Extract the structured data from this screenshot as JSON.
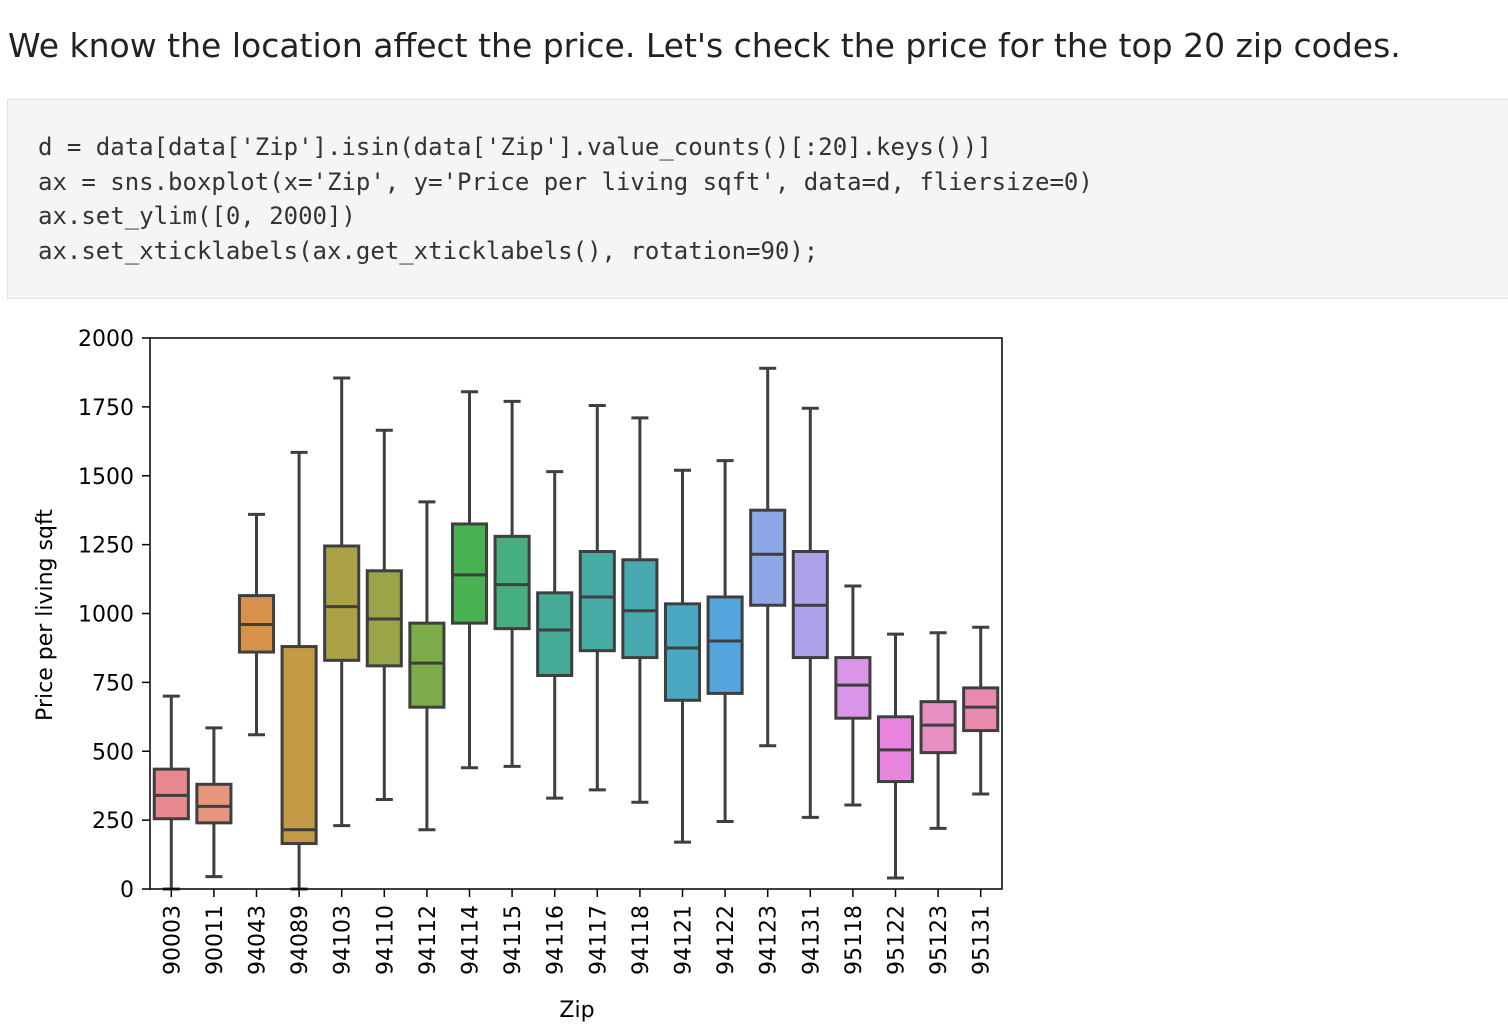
{
  "intro_text": "We know the location affect the price. Let's check the price for the top 20 zip codes.",
  "code": {
    "line1": {
      "a": "d = data[data['Zip'].isin(data['Zip'].value_counts()[:20].keys())]"
    },
    "line2": "ax = sns.boxplot(x='Zip', y='Price per living sqft', data=d, fliersize=0)",
    "line3": "ax.set_ylim([0, 2000])",
    "line4": "ax.set_xticklabels(ax.get_xticklabels(), rotation=90);"
  },
  "chart_data": {
    "type": "box",
    "title": "",
    "xlabel": "Zip",
    "ylabel": "Price per living sqft",
    "ylim": [
      0,
      2000
    ],
    "yticks": [
      0,
      250,
      500,
      750,
      1000,
      1250,
      1500,
      1750,
      2000
    ],
    "categories": [
      "90003",
      "90011",
      "94043",
      "94089",
      "94103",
      "94110",
      "94112",
      "94114",
      "94115",
      "94116",
      "94117",
      "94118",
      "94121",
      "94122",
      "94123",
      "94131",
      "95118",
      "95122",
      "95123",
      "95131"
    ],
    "boxes": [
      {
        "zip": "90003",
        "whislo": 0,
        "q1": 255,
        "med": 340,
        "q3": 435,
        "whishi": 700,
        "color": "#e8888f"
      },
      {
        "zip": "90011",
        "whislo": 45,
        "q1": 240,
        "med": 300,
        "q3": 380,
        "whishi": 585,
        "color": "#e8957d"
      },
      {
        "zip": "94043",
        "whislo": 560,
        "q1": 860,
        "med": 960,
        "q3": 1065,
        "whishi": 1360,
        "color": "#d8914a"
      },
      {
        "zip": "94089",
        "whislo": 0,
        "q1": 165,
        "med": 215,
        "q3": 880,
        "whishi": 1585,
        "color": "#c39a45"
      },
      {
        "zip": "94103",
        "whislo": 230,
        "q1": 830,
        "med": 1025,
        "q3": 1245,
        "whishi": 1855,
        "color": "#aba248"
      },
      {
        "zip": "94110",
        "whislo": 325,
        "q1": 810,
        "med": 980,
        "q3": 1155,
        "whishi": 1665,
        "color": "#9aa448"
      },
      {
        "zip": "94112",
        "whislo": 215,
        "q1": 660,
        "med": 820,
        "q3": 965,
        "whishi": 1405,
        "color": "#7cac4a"
      },
      {
        "zip": "94114",
        "whislo": 440,
        "q1": 965,
        "med": 1140,
        "q3": 1325,
        "whishi": 1805,
        "color": "#48b150"
      },
      {
        "zip": "94115",
        "whislo": 445,
        "q1": 945,
        "med": 1105,
        "q3": 1280,
        "whishi": 1770,
        "color": "#47ae81"
      },
      {
        "zip": "94116",
        "whislo": 330,
        "q1": 775,
        "med": 940,
        "q3": 1075,
        "whishi": 1515,
        "color": "#45ab96"
      },
      {
        "zip": "94117",
        "whislo": 360,
        "q1": 865,
        "med": 1060,
        "q3": 1225,
        "whishi": 1755,
        "color": "#47aba5"
      },
      {
        "zip": "94118",
        "whislo": 315,
        "q1": 840,
        "med": 1010,
        "q3": 1195,
        "whishi": 1710,
        "color": "#48a9b1"
      },
      {
        "zip": "94121",
        "whislo": 170,
        "q1": 685,
        "med": 875,
        "q3": 1035,
        "whishi": 1520,
        "color": "#4aa8c2"
      },
      {
        "zip": "94122",
        "whislo": 245,
        "q1": 710,
        "med": 900,
        "q3": 1060,
        "whishi": 1555,
        "color": "#52a6dd"
      },
      {
        "zip": "94123",
        "whislo": 520,
        "q1": 1030,
        "med": 1215,
        "q3": 1375,
        "whishi": 1890,
        "color": "#8ea8e7"
      },
      {
        "zip": "94131",
        "whislo": 260,
        "q1": 840,
        "med": 1030,
        "q3": 1225,
        "whishi": 1745,
        "color": "#b0a2ea"
      },
      {
        "zip": "95118",
        "whislo": 305,
        "q1": 620,
        "med": 740,
        "q3": 840,
        "whishi": 1100,
        "color": "#d995e8"
      },
      {
        "zip": "95122",
        "whislo": 40,
        "q1": 390,
        "med": 505,
        "q3": 625,
        "whishi": 925,
        "color": "#e883de"
      },
      {
        "zip": "95123",
        "whislo": 220,
        "q1": 495,
        "med": 595,
        "q3": 680,
        "whishi": 930,
        "color": "#e88ec2"
      },
      {
        "zip": "95131",
        "whislo": 345,
        "q1": 575,
        "med": 660,
        "q3": 730,
        "whishi": 950,
        "color": "#e88aad"
      }
    ]
  }
}
